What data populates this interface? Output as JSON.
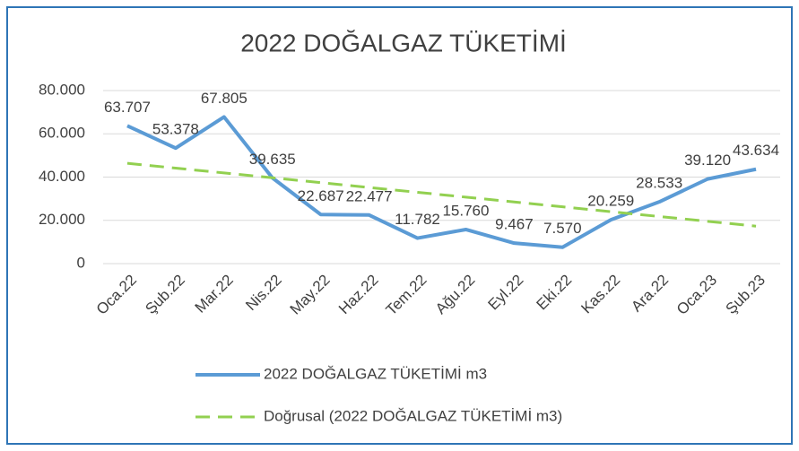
{
  "chart_data": {
    "type": "line",
    "title": "2022 DOĞALGAZ TÜKETİMİ",
    "categories": [
      "Oca.22",
      "Şub.22",
      "Mar.22",
      "Nis.22",
      "May.22",
      "Haz.22",
      "Tem.22",
      "Ağu.22",
      "Eyl.22",
      "Eki.22",
      "Kas.22",
      "Ara.22",
      "Oca.23",
      "Şub.23"
    ],
    "series": [
      {
        "name": "2022 DOĞALGAZ TÜKETİMİ m3",
        "color": "#5b9bd5",
        "values": [
          63707,
          53378,
          67805,
          39635,
          22687,
          22477,
          11782,
          15760,
          9467,
          7570,
          20259,
          28533,
          39120,
          43634
        ],
        "value_labels": [
          "63.707",
          "53.378",
          "67.805",
          "39.635",
          "22.687",
          "22.477",
          "11.782",
          "15.760",
          "9.467",
          "7.570",
          "20.259",
          "28.533",
          "39.120",
          "43.634"
        ]
      },
      {
        "name": "Doğrusal (2022 DOĞALGAZ TÜKETİMİ m3)",
        "color": "#92d050",
        "dashed": true,
        "values": [
          46379,
          44143,
          41907,
          39671,
          37435,
          35199,
          32963,
          30727,
          28491,
          26255,
          24019,
          21783,
          19547,
          17311
        ]
      }
    ],
    "ylim": [
      0,
      80000
    ],
    "yticks": [
      0,
      {
        "value": 20000,
        "label": "20.000"
      },
      {
        "value": 40000,
        "label": "40.000"
      },
      {
        "value": 60000,
        "label": "60.000"
      },
      {
        "value": 80000,
        "label": "80.000"
      }
    ],
    "grid": true,
    "legend": "bottom"
  }
}
